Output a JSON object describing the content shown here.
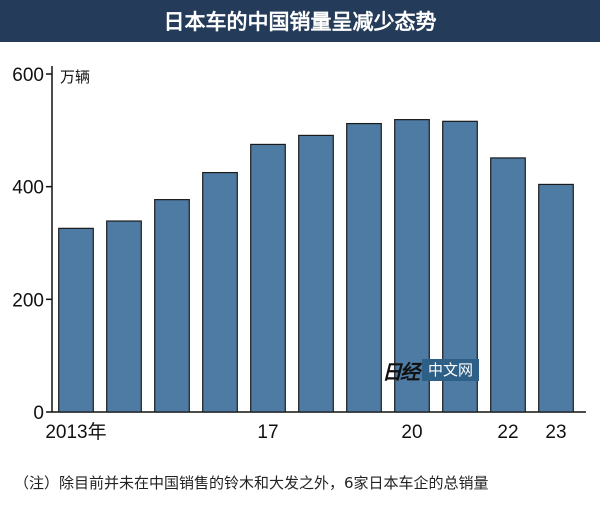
{
  "title": "日本车的中国销量呈减少态势",
  "footnote": "（注）除目前并未在中国销售的铃木和大发之外，6家日本车企的总销量",
  "watermark": {
    "logo_text": "日经",
    "badge_text": "中文网"
  },
  "colors": {
    "title_bg": "#243b5a",
    "bar": "#4d7ba3",
    "bar_stroke": "#1a1a1a",
    "watermark_bg": "#2e5f86"
  },
  "chart_data": {
    "type": "bar",
    "ylabel": "万辆",
    "ylim": [
      0,
      600
    ],
    "yticks": [
      0,
      200,
      400,
      600
    ],
    "categories": [
      "2013",
      "2014",
      "2015",
      "2016",
      "2017",
      "2018",
      "2019",
      "2020",
      "2021",
      "2022",
      "2023"
    ],
    "x_tick_labels": [
      "2013年",
      "",
      "",
      "",
      "17",
      "",
      "",
      "20",
      "",
      "22",
      "23"
    ],
    "values": [
      326,
      339,
      377,
      425,
      475,
      491,
      512,
      519,
      516,
      451,
      404
    ],
    "grid": false,
    "legend": "none"
  }
}
